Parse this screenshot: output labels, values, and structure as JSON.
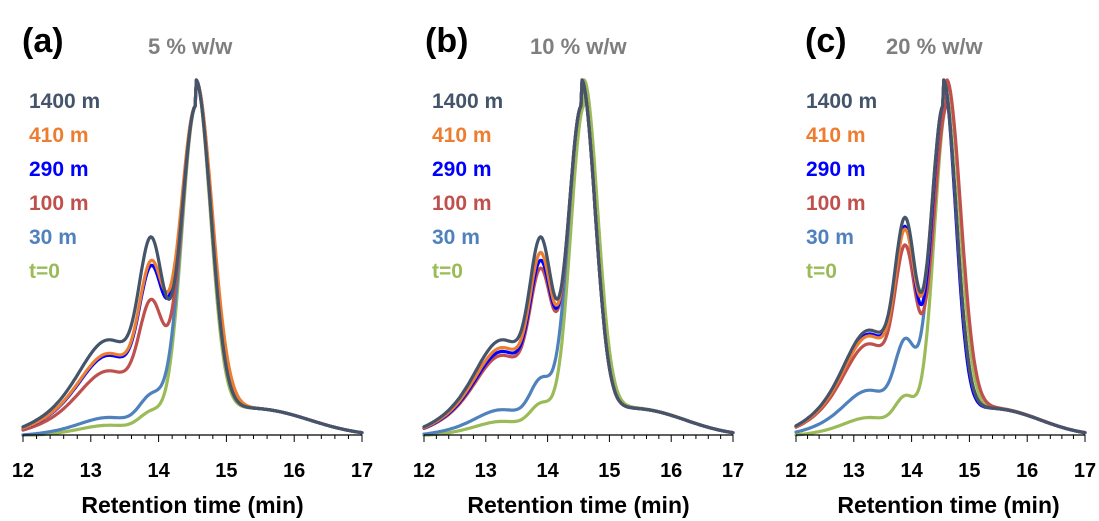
{
  "chart_data": [
    {
      "type": "line",
      "panel_label": "(a)",
      "title": "5 % w/w",
      "xlabel": "Retention time (min)",
      "ylabel": "",
      "xlim": [
        12,
        17
      ],
      "xticks": [
        "12",
        "13",
        "14",
        "15",
        "16",
        "17"
      ],
      "legend_position": "left",
      "series": [
        {
          "name": "1400 m",
          "color": "#44546a",
          "shoulder": 0.5,
          "shift": 0.0,
          "width": 0.22
        },
        {
          "name": "410 m",
          "color": "#ed7d31",
          "shoulder": 0.43,
          "shift": 0.0,
          "width": 0.24
        },
        {
          "name": "290 m",
          "color": "#0000ff",
          "shoulder": 0.42,
          "shift": 0.0,
          "width": 0.235
        },
        {
          "name": "100 m",
          "color": "#c0504d",
          "shoulder": 0.34,
          "shift": 0.0,
          "width": 0.22
        },
        {
          "name": "30 m",
          "color": "#4f81bd",
          "shoulder": 0.1,
          "shift": 0.0,
          "width": 0.22
        },
        {
          "name": "t=0",
          "color": "#9bbb59",
          "shoulder": 0.06,
          "shift": 0.0,
          "width": 0.21
        }
      ]
    },
    {
      "type": "line",
      "panel_label": "(b)",
      "title": "10 % w/w",
      "xlabel": "Retention time (min)",
      "ylabel": "",
      "xlim": [
        12,
        17
      ],
      "xticks": [
        "12",
        "13",
        "14",
        "15",
        "16",
        "17"
      ],
      "legend_position": "left",
      "series": [
        {
          "name": "1400 m",
          "color": "#44546a",
          "shoulder": 0.5,
          "shift": 0.0,
          "width": 0.22
        },
        {
          "name": "410 m",
          "color": "#ed7d31",
          "shoulder": 0.46,
          "shift": 0.0,
          "width": 0.22
        },
        {
          "name": "290 m",
          "color": "#0000ff",
          "shoulder": 0.44,
          "shift": 0.0,
          "width": 0.22
        },
        {
          "name": "100 m",
          "color": "#c0504d",
          "shoulder": 0.42,
          "shift": 0.0,
          "width": 0.22
        },
        {
          "name": "30 m",
          "color": "#4f81bd",
          "shoulder": 0.14,
          "shift": 0.0,
          "width": 0.22
        },
        {
          "name": "t=0",
          "color": "#9bbb59",
          "shoulder": 0.08,
          "shift": 0.04,
          "width": 0.22
        }
      ]
    },
    {
      "type": "line",
      "panel_label": "(c)",
      "title": "20 % w/w",
      "xlabel": "Retention time (min)",
      "ylabel": "",
      "xlim": [
        12,
        17
      ],
      "xticks": [
        "12",
        "13",
        "14",
        "15",
        "16",
        "17"
      ],
      "legend_position": "left",
      "series": [
        {
          "name": "1400 m",
          "color": "#44546a",
          "shoulder": 0.55,
          "shift": 0.0,
          "width": 0.22
        },
        {
          "name": "410 m",
          "color": "#ed7d31",
          "shoulder": 0.52,
          "shift": 0.0,
          "width": 0.22
        },
        {
          "name": "290 m",
          "color": "#0000ff",
          "shoulder": 0.53,
          "shift": 0.0,
          "width": 0.21
        },
        {
          "name": "100 m",
          "color": "#c0504d",
          "shoulder": 0.48,
          "shift": 0.06,
          "width": 0.24
        },
        {
          "name": "30 m",
          "color": "#4f81bd",
          "shoulder": 0.24,
          "shift": 0.0,
          "width": 0.22
        },
        {
          "name": "t=0",
          "color": "#9bbb59",
          "shoulder": 0.1,
          "shift": 0.06,
          "width": 0.22
        }
      ]
    }
  ]
}
